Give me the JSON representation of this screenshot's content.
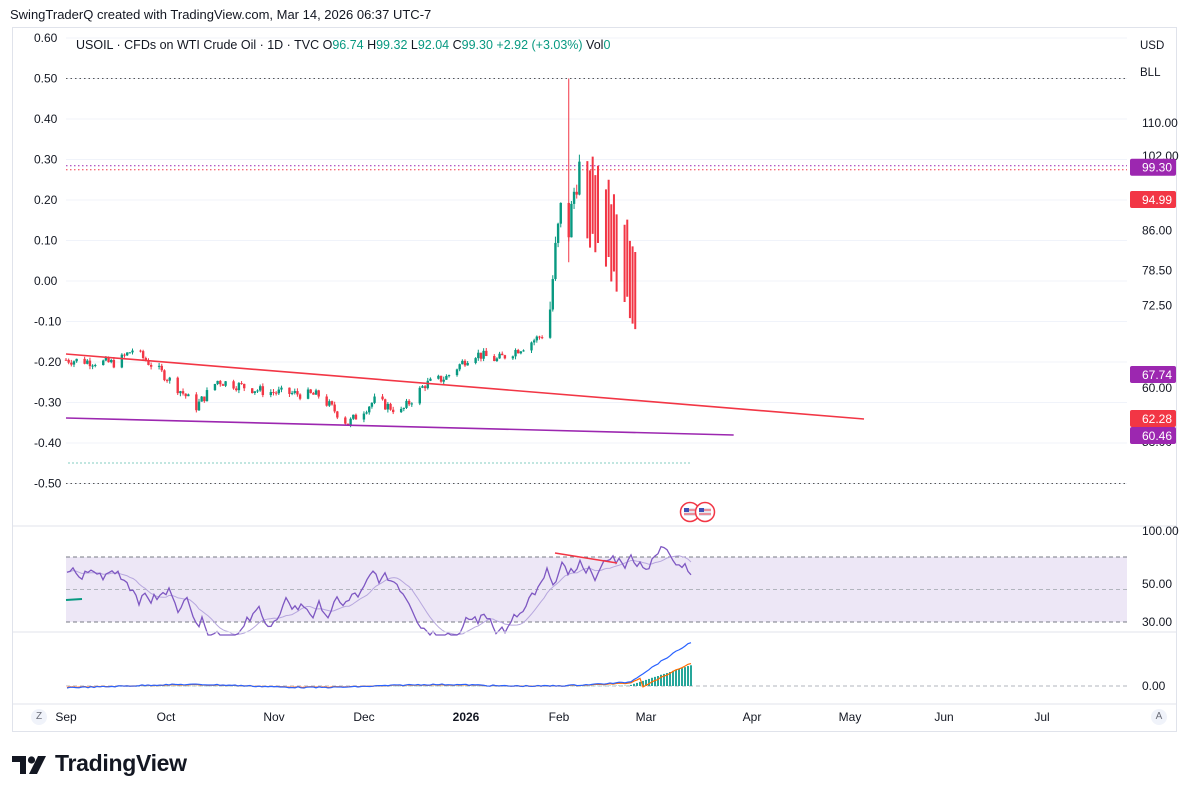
{
  "header": {
    "text": "SwingTraderQ created with TradingView.com, Mar 14, 2026 06:37 UTC-7"
  },
  "legend": {
    "symbol": "USOIL · CFDs on WTI Crude Oil · 1D · TVC",
    "o_label": "O",
    "o_value": "96.74",
    "h_label": "H",
    "h_value": "99.32",
    "l_label": "L",
    "l_value": "92.04",
    "c_label": "C",
    "c_value": "99.30",
    "change": "+2.92 (+3.03%)",
    "vol_label": "Vol",
    "vol_value": "0"
  },
  "currency": {
    "usd": "USD",
    "bll": "BLL"
  },
  "brand": {
    "name": "TradingView"
  },
  "controls": {
    "zoom": "Z",
    "auto": "A"
  },
  "colors": {
    "up": "#089981",
    "down": "#f23645",
    "red_line": "#f23645",
    "purple_line": "#9c27b0",
    "rsi_line": "#7e57c2",
    "rsi_band": "#ede7f6",
    "macd_line": "#2962ff",
    "signal_line": "#ff6d00"
  },
  "chart_data": [
    {
      "type": "candlestick",
      "x_ticks": [
        "Sep",
        "Oct",
        "Nov",
        "Dec",
        "2026",
        "Feb",
        "Mar",
        "Apr",
        "May",
        "Jun",
        "Jul"
      ],
      "left_axis": [
        "0.60",
        "0.50",
        "0.40",
        "0.30",
        "0.20",
        "0.10",
        "0.00",
        "-0.10",
        "-0.20",
        "-0.30",
        "-0.40",
        "-0.50"
      ],
      "right_axis": [
        "110.00",
        "102.00",
        "86.00",
        "78.50",
        "72.50",
        "60.00",
        "56.50",
        "53.00"
      ],
      "right_axis_type": "log",
      "price_labels": [
        {
          "value": "99.30",
          "color": "#9c27b0"
        },
        {
          "value": "94.99",
          "color": "#f23645"
        },
        {
          "value": "67.74",
          "color": "#9c27b0"
        },
        {
          "value": "62.28",
          "color": "#f23645"
        },
        {
          "value": "60.46",
          "color": "#9c27b0"
        }
      ],
      "trendlines": [
        {
          "color": "#f23645",
          "from": [
            "Sep",
            68.0
          ],
          "to": [
            "Jun 28",
            62.28
          ]
        },
        {
          "color": "#9c27b0",
          "from": [
            "Sep",
            62.5
          ],
          "to": [
            "May 10",
            60.46
          ]
        }
      ],
      "ohlc_summary": {
        "open": 96.74,
        "high": 99.32,
        "low": 92.04,
        "close": 99.3
      }
    },
    {
      "type": "line",
      "name": "RSI",
      "y_ticks": [
        "100.00",
        "50.00",
        "30.00"
      ],
      "bands": [
        70,
        30
      ],
      "ylim": [
        30,
        100
      ]
    },
    {
      "type": "bar",
      "name": "MACD",
      "y_ticks": [
        "0.00"
      ]
    }
  ]
}
